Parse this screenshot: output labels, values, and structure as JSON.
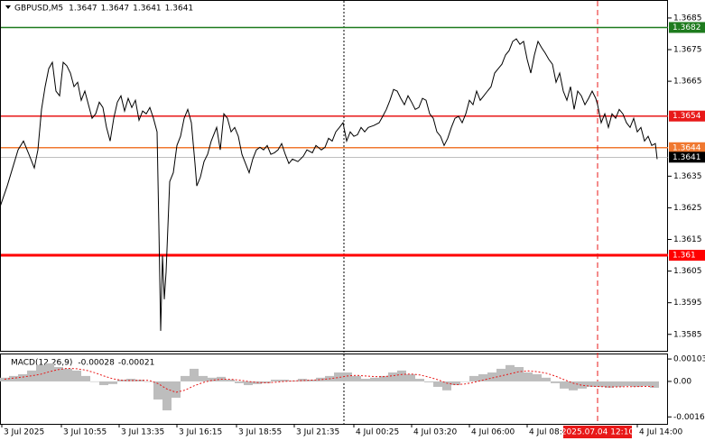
{
  "chart_data": [
    {
      "type": "line",
      "title": "GBPUSD,M5",
      "ohlc": [
        1.3647,
        1.3647,
        1.3641,
        1.3641
      ],
      "color": "#000000",
      "x": [
        0,
        4,
        7,
        10,
        13,
        16,
        19,
        21,
        23,
        25,
        27,
        29,
        31,
        33,
        35,
        37,
        39,
        41,
        43,
        45,
        47,
        49,
        51,
        53,
        55,
        57,
        59,
        61,
        63,
        65,
        67,
        69,
        71,
        73,
        75,
        77,
        79,
        81,
        83,
        85,
        87,
        88,
        89,
        90,
        91,
        92,
        94,
        96,
        98,
        100,
        102,
        104,
        106,
        108,
        109,
        111,
        113,
        115,
        117,
        120,
        122,
        124,
        126,
        128,
        130,
        132,
        134,
        136,
        138,
        140,
        142,
        144,
        146,
        148,
        150,
        152,
        154,
        156,
        158,
        160,
        162,
        165,
        168,
        170,
        173,
        175,
        178,
        180,
        182,
        184,
        186,
        188,
        190,
        192,
        194,
        196,
        198,
        200,
        202,
        204,
        207,
        210,
        212,
        214,
        216,
        218,
        220,
        222,
        224,
        226,
        228,
        230,
        232,
        234,
        236,
        238,
        240,
        242,
        244,
        246,
        248,
        250,
        252,
        254,
        256,
        258,
        260,
        262,
        264,
        266,
        268,
        270,
        272,
        274,
        276,
        278,
        280,
        282,
        284,
        286,
        288,
        290,
        292,
        294,
        296,
        298,
        300,
        302,
        304,
        306,
        308,
        310,
        312,
        314,
        316,
        318,
        320,
        322,
        324,
        326,
        328,
        330,
        331,
        333,
        335,
        337,
        339,
        341,
        343,
        345,
        347,
        349,
        351,
        353,
        355,
        357,
        359,
        361,
        363,
        364
      ],
      "values": [
        1.36253,
        1.36319,
        1.36376,
        1.36433,
        1.36461,
        1.36419,
        1.36376,
        1.36433,
        1.36561,
        1.36633,
        1.3669,
        1.3671,
        1.36619,
        1.36604,
        1.3671,
        1.36699,
        1.36676,
        1.36633,
        1.36647,
        1.3659,
        1.36619,
        1.36576,
        1.36533,
        1.36547,
        1.36584,
        1.36567,
        1.36504,
        1.36461,
        1.36533,
        1.36584,
        1.36604,
        1.36556,
        1.36596,
        1.36567,
        1.3659,
        1.36527,
        1.36556,
        1.36547,
        1.36567,
        1.36533,
        1.3649,
        1.3619,
        1.35861,
        1.36099,
        1.35961,
        1.36047,
        1.36333,
        1.36361,
        1.36447,
        1.36476,
        1.36533,
        1.36561,
        1.36519,
        1.3639,
        1.36319,
        1.36347,
        1.36396,
        1.36419,
        1.36461,
        1.36504,
        1.36433,
        1.36547,
        1.36533,
        1.3649,
        1.36504,
        1.36476,
        1.36419,
        1.3639,
        1.36361,
        1.36404,
        1.36433,
        1.36441,
        1.36433,
        1.36447,
        1.36419,
        1.36424,
        1.36433,
        1.36453,
        1.36419,
        1.3639,
        1.36404,
        1.36396,
        1.36413,
        1.36433,
        1.36424,
        1.36447,
        1.36433,
        1.36441,
        1.3647,
        1.36461,
        1.3649,
        1.36504,
        1.36519,
        1.36461,
        1.3649,
        1.36476,
        1.36481,
        1.36504,
        1.3649,
        1.36504,
        1.3651,
        1.36519,
        1.36539,
        1.36561,
        1.3659,
        1.36624,
        1.36619,
        1.36596,
        1.36576,
        1.36604,
        1.36584,
        1.36561,
        1.36567,
        1.36596,
        1.3659,
        1.36547,
        1.36533,
        1.3649,
        1.36476,
        1.36447,
        1.3647,
        1.36504,
        1.36533,
        1.36539,
        1.36519,
        1.36547,
        1.3659,
        1.36576,
        1.36619,
        1.3659,
        1.36604,
        1.36619,
        1.36633,
        1.36676,
        1.3669,
        1.36704,
        1.36733,
        1.36747,
        1.36776,
        1.36784,
        1.36767,
        1.36776,
        1.36719,
        1.36676,
        1.36733,
        1.36776,
        1.36756,
        1.36739,
        1.36719,
        1.36704,
        1.36647,
        1.36676,
        1.36619,
        1.3659,
        1.36633,
        1.36561,
        1.36619,
        1.36604,
        1.36576,
        1.36596,
        1.36619,
        1.36596,
        1.36576,
        1.36519,
        1.36547,
        1.36504,
        1.36547,
        1.36533,
        1.36561,
        1.36547,
        1.36519,
        1.36504,
        1.36533,
        1.3649,
        1.36504,
        1.36461,
        1.36476,
        1.36447,
        1.36453,
        1.36404
      ],
      "xlim": [
        0,
        370
      ],
      "xticks": [
        {
          "value": 1,
          "label": "3 Jul 2025"
        },
        {
          "value": 34,
          "label": "3 Jul 10:55"
        },
        {
          "value": 66,
          "label": "3 Jul 13:35"
        },
        {
          "value": 98,
          "label": "3 Jul 16:15"
        },
        {
          "value": 131,
          "label": "3 Jul 18:55"
        },
        {
          "value": 163,
          "label": "3 Jul 21:35"
        },
        {
          "value": 196,
          "label": "4 Jul 00:25"
        },
        {
          "value": 228,
          "label": "4 Jul 03:20"
        },
        {
          "value": 260,
          "label": "4 Jul 06:00"
        },
        {
          "value": 292,
          "label": "4 Jul 08:40"
        },
        {
          "value": 353,
          "label": "4 Jul 14:00"
        }
      ],
      "cursor": {
        "value": 331,
        "label": "2025.07.04 12:10"
      },
      "ylim": [
        1.35798,
        1.36904
      ],
      "yticks": [
        1.3585,
        1.3595,
        1.3605,
        1.3615,
        1.3625,
        1.3635,
        1.3665,
        1.3675,
        1.3685
      ],
      "levels": [
        {
          "value": 1.3682,
          "color": "#1e7b1e"
        },
        {
          "value": 1.3654,
          "color": "#e81818"
        },
        {
          "value": 1.3644,
          "color": "#f07830"
        },
        {
          "value": 1.3641,
          "color": "#000000"
        },
        {
          "value": 1.361,
          "color": "#ff0000"
        }
      ]
    },
    {
      "type": "bar",
      "title": "MACD(12,26,9)",
      "indicator_values": [
        -0.00028,
        -0.00021
      ],
      "series": [
        {
          "name": "MACD",
          "color": "#bdbdbd",
          "values": [
            0.00017,
            0.00025,
            0.00033,
            0.0005,
            0.00075,
            0.00083,
            0.00066,
            0.00058,
            0.0005,
            0.00025,
            0,
            -0.00017,
            -0.00012,
            8e-05,
            0.00012,
            8e-05,
            0,
            -0.00083,
            -0.00133,
            -0.00075,
            0.00025,
            0.00058,
            0.00025,
            0.00017,
            0.00021,
            8e-05,
            -8e-05,
            -0.00017,
            -0.00012,
            -8e-05,
            8e-05,
            8e-05,
            4e-05,
            0.00012,
            8e-05,
            0.00017,
            0.00025,
            0.00041,
            0.00041,
            0.00025,
            0.00012,
            0.00017,
            0.00025,
            0.00041,
            0.0005,
            0.00033,
            0.00012,
            -4e-05,
            -0.00025,
            -0.00041,
            -0.00017,
            0,
            0.00025,
            0.00033,
            0.00041,
            0.00058,
            0.00075,
            0.00066,
            0.00041,
            0.00033,
            0.00017,
            -8e-05,
            -0.00033,
            -0.00041,
            -0.00033,
            -0.00025,
            -0.00025,
            -0.00029,
            -0.00025,
            -0.00021,
            -0.00025,
            -0.00021,
            -0.00029
          ]
        },
        {
          "name": "Signal",
          "color": "#e81818",
          "values": [
            0.0001,
            0.00015,
            0.0002,
            0.00026,
            0.00033,
            0.00045,
            0.00055,
            0.0006,
            0.00058,
            0.00052,
            0.0004,
            0.00025,
            0.00012,
            5e-05,
            4e-05,
            5e-05,
            5e-05,
            -0.0001,
            -0.00035,
            -0.0005,
            -0.0004,
            -0.0002,
            -5e-05,
            5e-05,
            0.0001,
            0.0001,
            6e-05,
            0,
            -5e-05,
            -6e-05,
            -4e-05,
            0,
            2e-05,
            4e-05,
            6e-05,
            8e-05,
            0.00012,
            0.00018,
            0.00025,
            0.00028,
            0.00025,
            0.00022,
            0.00022,
            0.00026,
            0.00032,
            0.00034,
            0.0003,
            0.0002,
            8e-05,
            -8e-05,
            -0.00015,
            -0.00012,
            -4e-05,
            6e-05,
            0.00016,
            0.00025,
            0.00035,
            0.00045,
            0.00048,
            0.00045,
            0.00038,
            0.00025,
            8e-05,
            -8e-05,
            -0.00018,
            -0.00022,
            -0.00024,
            -0.00025,
            -0.00025,
            -0.00024,
            -0.00024,
            -0.00023,
            -0.00024
          ]
        }
      ],
      "ylim": [
        -0.00195,
        0.00124
      ],
      "yticks": [
        -0.00163,
        {
          "value": 0,
          "label": "0.00"
        },
        0.00103
      ]
    }
  ]
}
